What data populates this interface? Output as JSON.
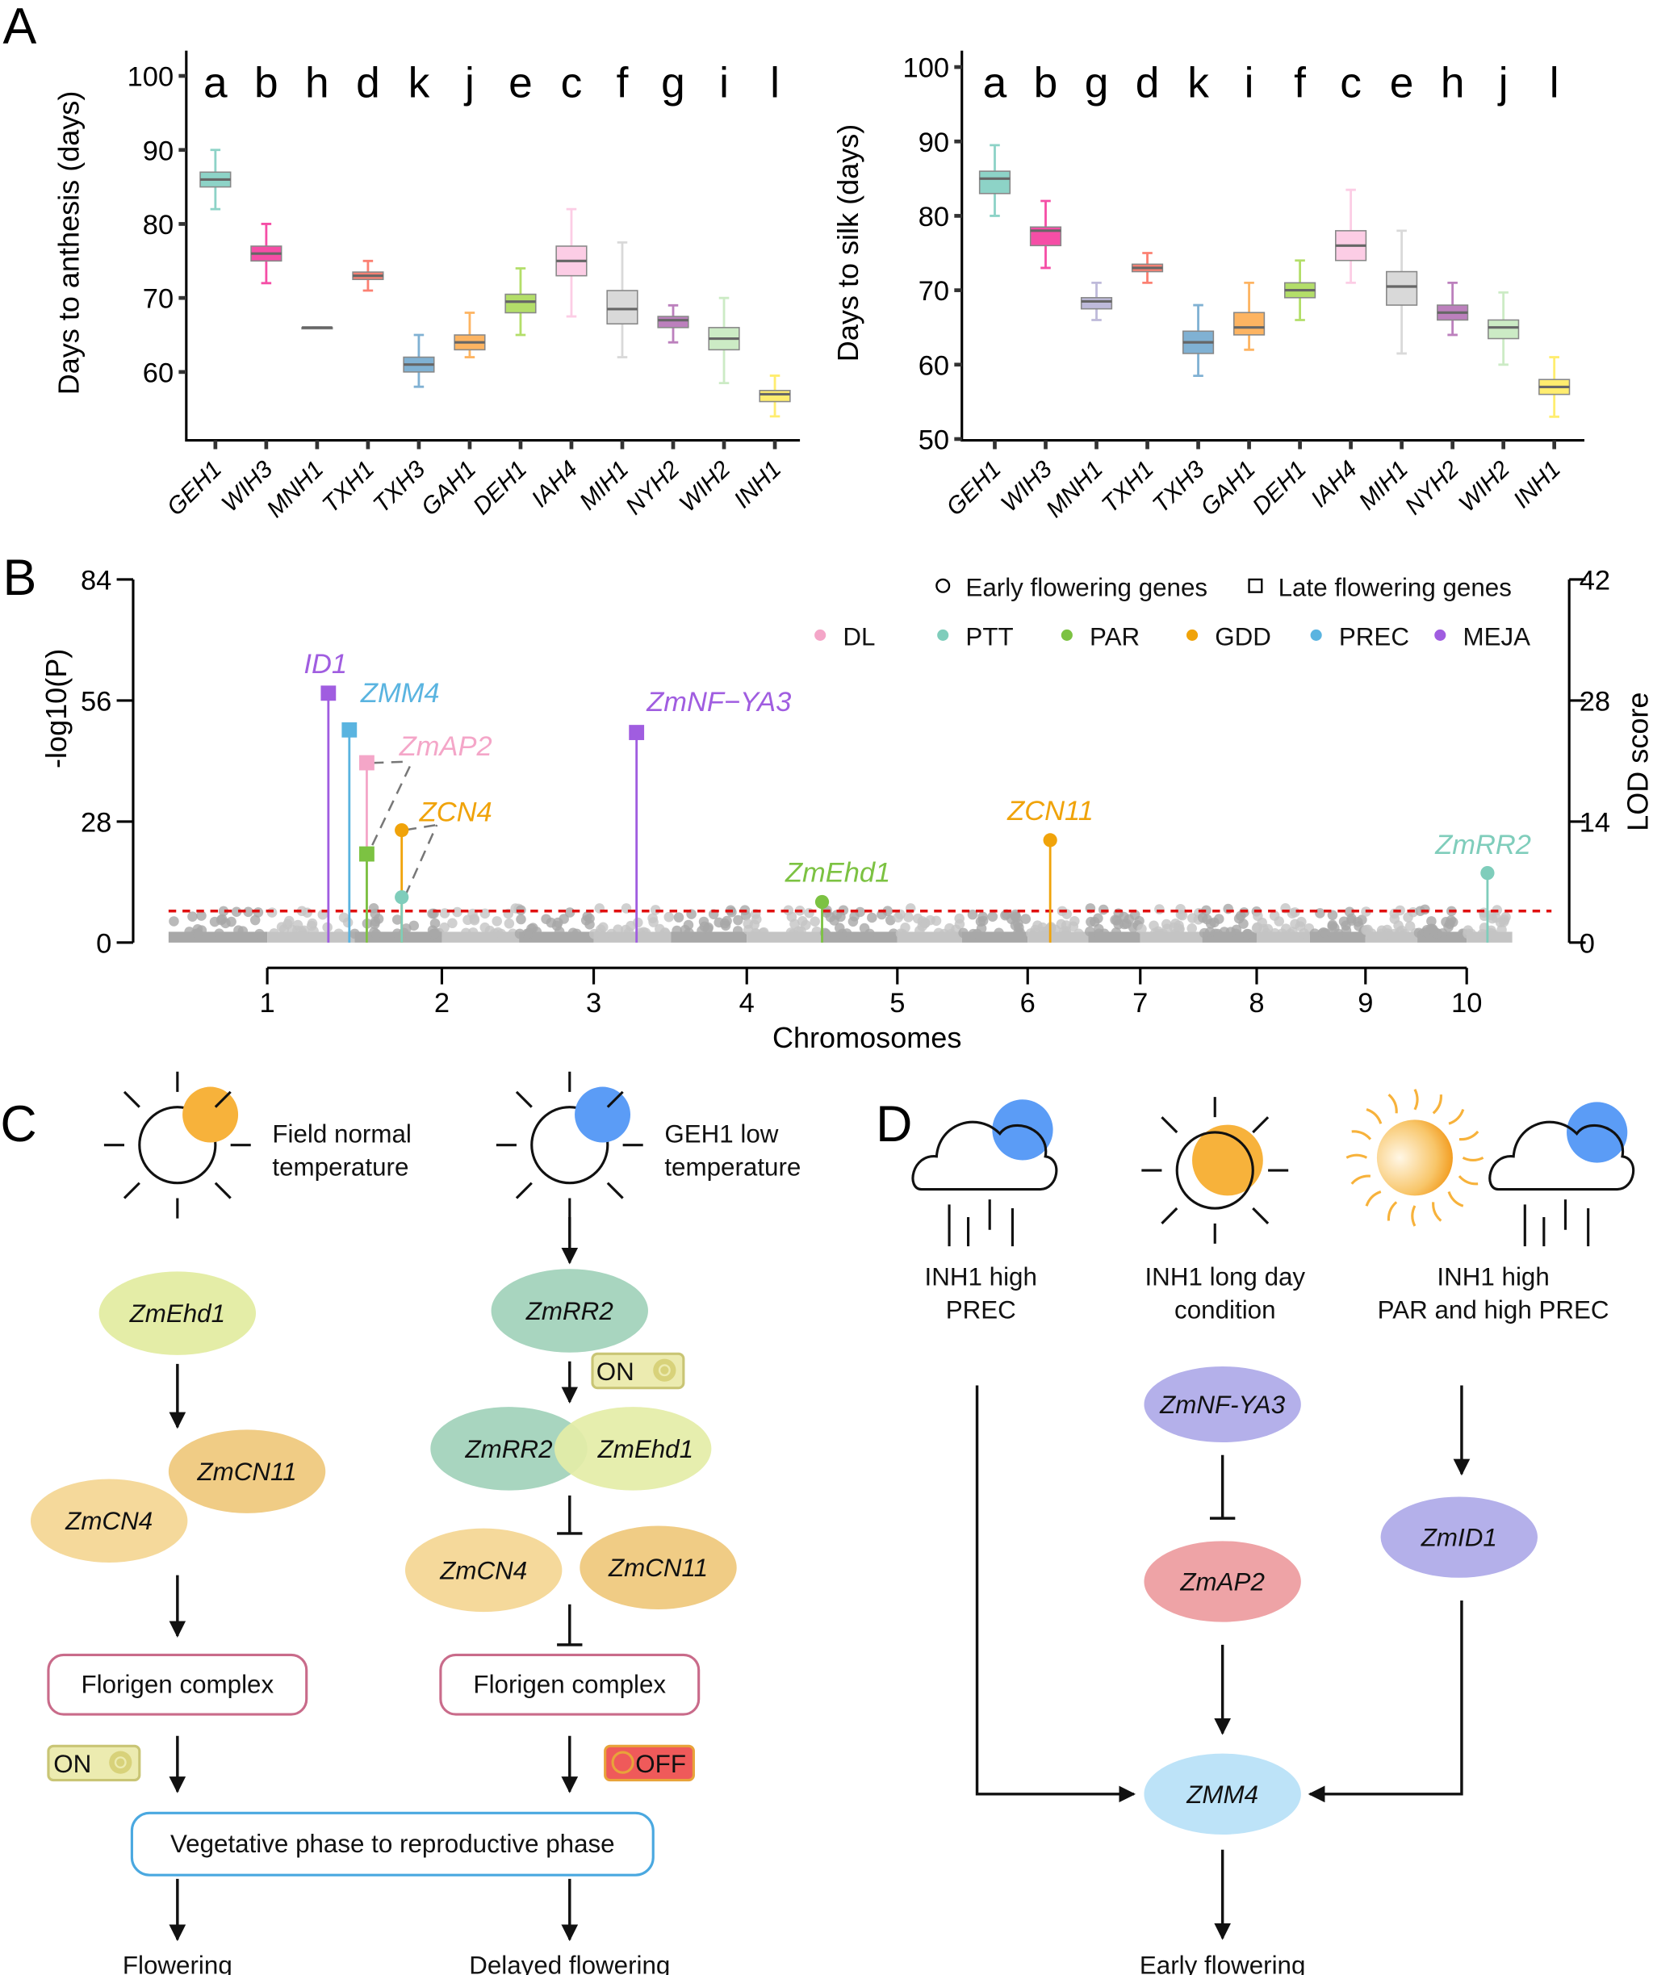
{
  "panels": {
    "a": "A",
    "b": "B",
    "c": "C",
    "d": "D"
  },
  "chart_data": [
    {
      "type": "box",
      "title": "",
      "ylabel": "Days to anthesis (days)",
      "ylim": [
        52,
        104
      ],
      "yticks": [
        60,
        70,
        80,
        90,
        100
      ],
      "categories": [
        "GEH1",
        "WIH3",
        "MNH1",
        "TXH1",
        "TXH3",
        "GAH1",
        "DEH1",
        "IAH4",
        "MIH1",
        "NYH2",
        "WIH2",
        "INH1"
      ],
      "letters": [
        "a",
        "b",
        "h",
        "d",
        "k",
        "j",
        "e",
        "c",
        "f",
        "g",
        "i",
        "l"
      ],
      "boxes": [
        [
          82,
          85,
          86,
          87,
          90
        ],
        [
          72,
          75,
          76,
          77,
          80
        ],
        [
          66,
          66,
          66,
          66,
          66
        ],
        [
          71,
          72.5,
          73,
          73.5,
          75
        ],
        [
          58,
          60,
          61,
          62,
          65
        ],
        [
          62,
          63,
          64,
          65,
          68
        ],
        [
          65,
          68,
          69.5,
          70.5,
          74
        ],
        [
          67.5,
          73,
          75,
          77,
          82
        ],
        [
          62,
          66.5,
          68.5,
          71,
          77.5
        ],
        [
          64,
          66,
          67,
          67.5,
          69
        ],
        [
          58.5,
          63,
          64.5,
          66,
          70
        ],
        [
          54,
          56,
          57,
          57.5,
          59.5
        ]
      ]
    },
    {
      "type": "box",
      "title": "",
      "ylabel": "Days to silk (days)",
      "ylim": [
        50,
        104
      ],
      "yticks": [
        50,
        60,
        70,
        80,
        90,
        100
      ],
      "categories": [
        "GEH1",
        "WIH3",
        "MNH1",
        "TXH1",
        "TXH3",
        "GAH1",
        "DEH1",
        "IAH4",
        "MIH1",
        "NYH2",
        "WIH2",
        "INH1"
      ],
      "letters": [
        "a",
        "b",
        "g",
        "d",
        "k",
        "i",
        "f",
        "c",
        "e",
        "h",
        "j",
        "l"
      ],
      "boxes": [
        [
          80,
          83,
          85,
          86,
          89.5
        ],
        [
          73,
          76,
          78,
          78.5,
          82
        ],
        [
          66,
          67.5,
          68.5,
          69,
          71
        ],
        [
          71,
          72.5,
          73,
          73.5,
          75
        ],
        [
          58.5,
          61.5,
          63,
          64.5,
          68
        ],
        [
          62,
          64,
          65,
          67,
          71
        ],
        [
          66,
          69,
          70,
          71,
          74
        ],
        [
          71,
          74,
          76,
          78,
          83.5
        ],
        [
          61.5,
          68,
          70.5,
          72.5,
          78
        ],
        [
          64,
          66,
          67,
          68,
          71
        ],
        [
          60,
          63.5,
          65,
          66,
          69.7
        ],
        [
          53,
          56,
          57,
          58,
          61
        ]
      ]
    },
    {
      "type": "manhattan",
      "xlabel": "Chromosomes",
      "ylabel": "-log10(P)",
      "ylabel_right": "LOD score",
      "ylim": [
        0,
        84
      ],
      "yticks": [
        0,
        28,
        56,
        84
      ],
      "yticks_right": [
        0,
        14,
        28,
        42
      ],
      "xticks": [
        "1",
        "2",
        "3",
        "4",
        "5",
        "6",
        "7",
        "8",
        "9",
        "10"
      ],
      "threshold": 7.3,
      "legend_shape": {
        "early": "Early flowering genes",
        "late": "Late flowering genes"
      },
      "legend_traits": [
        {
          "name": "DL",
          "color": "#f4a6c8"
        },
        {
          "name": "PTT",
          "color": "#7fcdbb"
        },
        {
          "name": "PAR",
          "color": "#7cc242"
        },
        {
          "name": "GDD",
          "color": "#f0a30a"
        },
        {
          "name": "PREC",
          "color": "#5ab4e0"
        },
        {
          "name": "MEJA",
          "color": "#a05de0"
        }
      ],
      "genes": [
        {
          "label": "ID1",
          "chr_pos": 1.35,
          "value": 57.7,
          "trait": "MEJA",
          "shape": "square"
        },
        {
          "label": "ZMM4",
          "chr_pos": 1.47,
          "value": 49.2,
          "trait": "PREC",
          "shape": "square"
        },
        {
          "label": "ZmAP2",
          "chr_pos": 1.57,
          "value": 41.6,
          "trait": "DL",
          "shape": "square"
        },
        {
          "label": "",
          "chr_pos": 1.57,
          "value": 20.5,
          "trait": "PAR",
          "shape": "square"
        },
        {
          "label": "ZCN4",
          "chr_pos": 1.77,
          "value": 26,
          "trait": "GDD",
          "shape": "circle"
        },
        {
          "label": "",
          "chr_pos": 1.77,
          "value": 10.5,
          "trait": "PTT",
          "shape": "circle"
        },
        {
          "label": "ZmNF−YA3",
          "chr_pos": 3.28,
          "value": 48.6,
          "trait": "MEJA",
          "shape": "square"
        },
        {
          "label": "ZmEhd1",
          "chr_pos": 4.5,
          "value": 9.4,
          "trait": "PAR",
          "shape": "circle"
        },
        {
          "label": "ZCN11",
          "chr_pos": 6.2,
          "value": 23.7,
          "trait": "GDD",
          "shape": "circle"
        },
        {
          "label": "ZmRR2",
          "chr_pos": 10.4,
          "value": 16.1,
          "trait": "PTT",
          "shape": "circle"
        }
      ]
    }
  ],
  "panel_c": {
    "cond1": [
      "Field normal",
      "temperature"
    ],
    "cond2": [
      "GEH1 low",
      "temperature"
    ],
    "left": {
      "ehd1": "ZmEhd1",
      "cn11": "ZmCN11",
      "cn4": "ZmCN4",
      "florigen": "Florigen complex",
      "switch": "ON"
    },
    "right": {
      "rr2": "ZmRR2",
      "switch1": "ON",
      "rr2b": "ZmRR2",
      "ehd1": "ZmEhd1",
      "cn4": "ZmCN4",
      "cn11": "ZmCN11",
      "florigen": "Florigen complex",
      "switch2": "OFF"
    },
    "phase": "Vegetative phase to reproductive phase",
    "out1": "Flowering",
    "out2": "Delayed flowering"
  },
  "panel_d": {
    "cond1": [
      "INH1 high",
      "PREC"
    ],
    "cond2": [
      "INH1 long day",
      "condition"
    ],
    "cond3": [
      "INH1 high",
      "PAR and high PREC"
    ],
    "nfya3": "ZmNF-YA3",
    "ap2": "ZmAP2",
    "id1": "ZmID1",
    "mm4": "ZMM4",
    "out": "Early flowering"
  },
  "colors": {
    "GEH1": "#8dd3c7",
    "WIH3": "#f54ea6",
    "MNH1": "#bebada",
    "TXH1": "#fb8072",
    "TXH3": "#80b1d3",
    "GAH1": "#fdb462",
    "DEH1": "#b3de69",
    "IAH4": "#fccde5",
    "MIH1": "#d9d9d9",
    "NYH2": "#bc80bd",
    "WIH2": "#ccebc5",
    "INH1": "#ffed6f"
  }
}
